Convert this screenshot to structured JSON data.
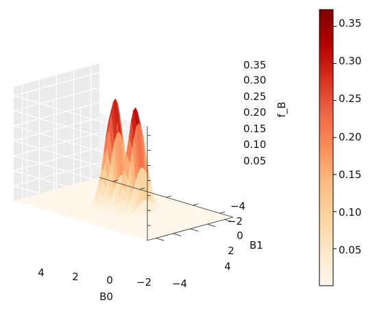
{
  "chart_data": {
    "type": "surface",
    "xlabel": "B0",
    "ylabel": "B1",
    "zlabel": "f_B",
    "x_ticks": [
      "4",
      "2",
      "0",
      "−2",
      "−4"
    ],
    "y_ticks": [
      "−4",
      "−2",
      "0",
      "2",
      "4"
    ],
    "z_ticks": [
      "0.05",
      "0.10",
      "0.15",
      "0.20",
      "0.25",
      "0.30",
      "0.35"
    ],
    "colorbar_ticks": [
      "0.05",
      "0.10",
      "0.15",
      "0.20",
      "0.25",
      "0.30",
      "0.35"
    ],
    "xlim": [
      -5,
      5
    ],
    "ylim": [
      -5,
      5
    ],
    "zlim": [
      0,
      0.38
    ],
    "colormap": "OrRd",
    "colormap_stops": [
      "#fff7ec",
      "#fee8c8",
      "#fdd49e",
      "#fdbb84",
      "#fc8d59",
      "#ef6548",
      "#d7301f",
      "#b30000",
      "#7f0000"
    ],
    "peaks": [
      {
        "B0": -0.8,
        "B1": 0.2,
        "f_B": 0.35
      },
      {
        "B0": 0.8,
        "B1": 0.2,
        "f_B": 0.36
      }
    ],
    "grid": true
  }
}
